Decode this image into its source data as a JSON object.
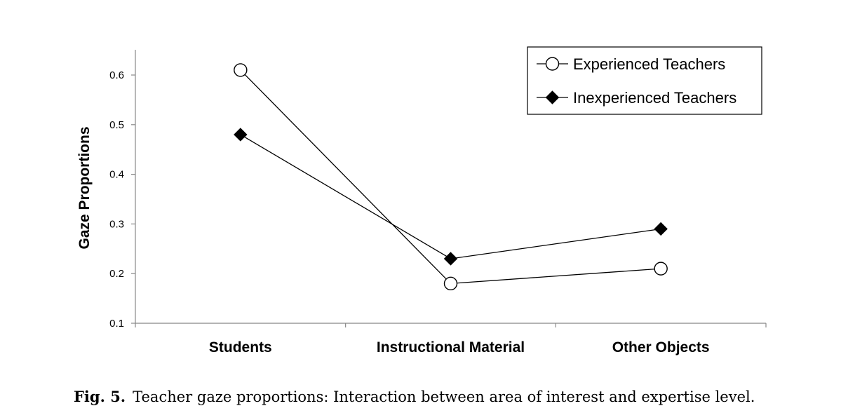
{
  "chart_data": {
    "type": "line",
    "categories": [
      "Students",
      "Instructional Material",
      "Other Objects"
    ],
    "series": [
      {
        "name": "Experienced Teachers",
        "marker": "open-circle",
        "values": [
          0.61,
          0.18,
          0.21
        ]
      },
      {
        "name": "Inexperienced Teachers",
        "marker": "filled-diamond",
        "values": [
          0.48,
          0.23,
          0.29
        ]
      }
    ],
    "xlabel": "",
    "ylabel": "Gaze Proportions",
    "ylim": [
      0.1,
      0.6
    ],
    "yticks": [
      "0.1",
      "0.2",
      "0.3",
      "0.4",
      "0.5",
      "0.6"
    ],
    "grid": false,
    "legend_position": "top-right",
    "line_color": "#000000"
  },
  "caption": {
    "label": "Fig. 5.",
    "text": "Teacher gaze proportions: Interaction between area of interest and expertise level."
  }
}
